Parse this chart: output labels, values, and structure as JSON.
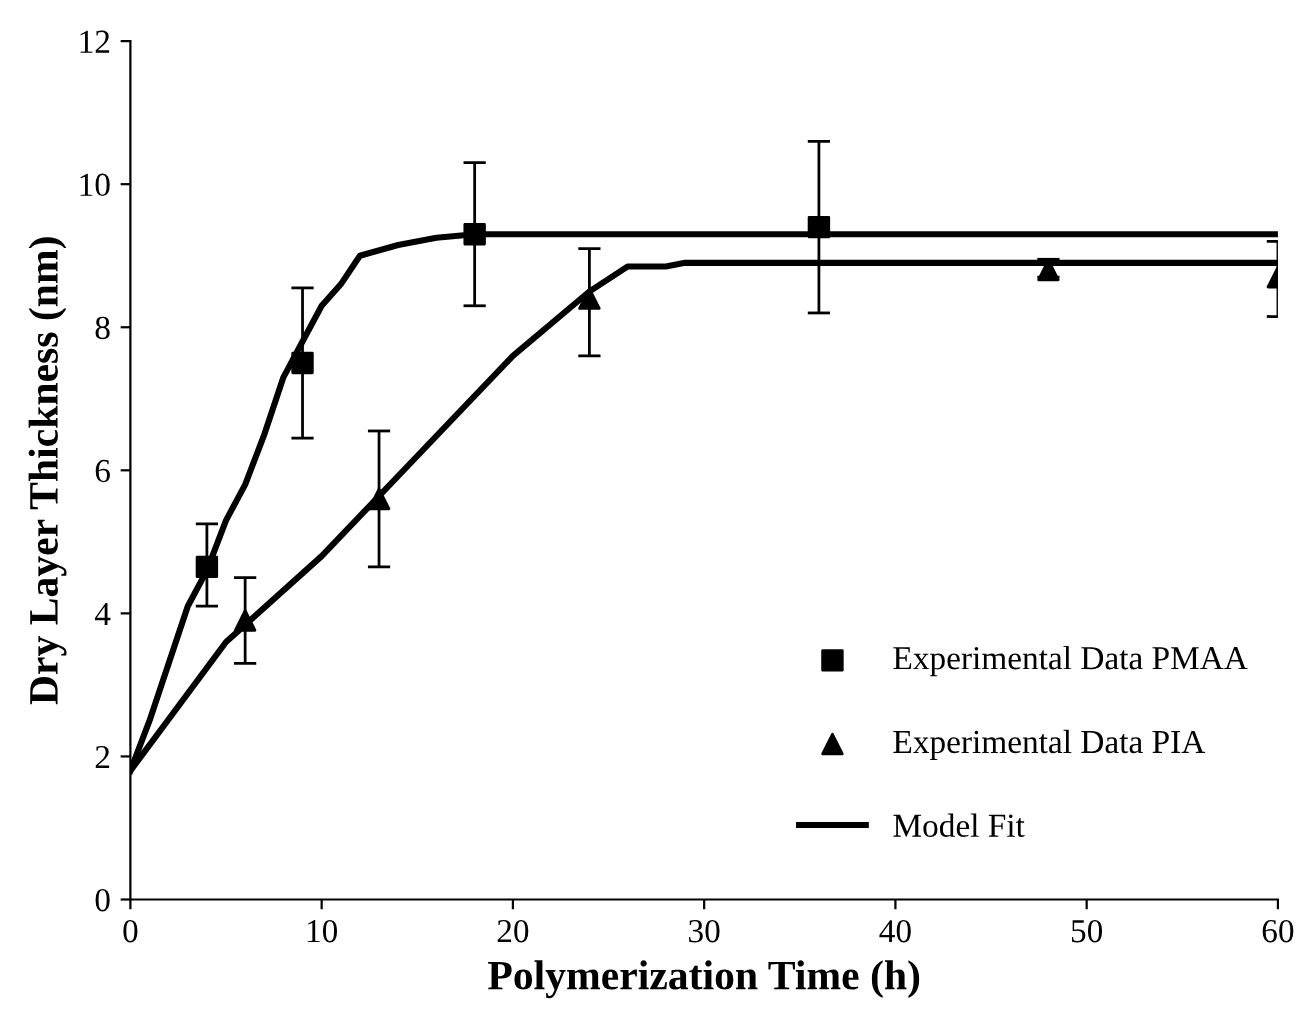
{
  "chart_data": {
    "type": "scatter",
    "xlabel": "Polymerization Time (h)",
    "ylabel": "Dry Layer Thickness (nm)",
    "xlim": [
      0,
      60
    ],
    "ylim": [
      0,
      12
    ],
    "xticks": [
      0,
      10,
      20,
      30,
      40,
      50,
      60
    ],
    "yticks": [
      0,
      2,
      4,
      6,
      8,
      10,
      12
    ],
    "grid": false,
    "legend": "bottom right",
    "series": [
      {
        "name": "Experimental Data PMAA",
        "marker": "square",
        "color": "#000000",
        "x": [
          4,
          9,
          18,
          36
        ],
        "values": [
          4.65,
          7.5,
          9.3,
          9.4
        ],
        "errors": [
          [
            4.1,
            5.25
          ],
          [
            6.45,
            8.55
          ],
          [
            8.3,
            10.3
          ],
          [
            8.2,
            10.6
          ]
        ]
      },
      {
        "name": "Experimental Data PIA",
        "marker": "triangle",
        "color": "#000000",
        "x": [
          6,
          13,
          24,
          48,
          60
        ],
        "values": [
          3.9,
          5.6,
          8.4,
          8.8,
          8.7
        ],
        "errors": [
          [
            3.3,
            4.5
          ],
          [
            4.65,
            6.55
          ],
          [
            7.6,
            9.1
          ],
          [
            8.7,
            8.95
          ],
          [
            8.15,
            9.2
          ]
        ]
      },
      {
        "name": "Model Fit",
        "type": "line",
        "marker": "none",
        "color": "#000000",
        "x": [
          0,
          1,
          2,
          3,
          4,
          5,
          6,
          7,
          8,
          9,
          10,
          11,
          12,
          14,
          16,
          18,
          60
        ],
        "values": [
          1.8,
          2.5,
          3.3,
          4.1,
          4.6,
          5.3,
          5.8,
          6.5,
          7.3,
          7.8,
          8.3,
          8.6,
          9.0,
          9.15,
          9.25,
          9.3,
          9.3
        ]
      },
      {
        "type": "line",
        "marker": "none",
        "color": "#000000",
        "x": [
          0,
          5,
          10,
          15,
          20,
          24,
          26,
          28,
          29,
          60
        ],
        "values": [
          1.8,
          3.6,
          4.8,
          6.2,
          7.6,
          8.5,
          8.85,
          8.85,
          8.9,
          8.9
        ]
      }
    ]
  }
}
